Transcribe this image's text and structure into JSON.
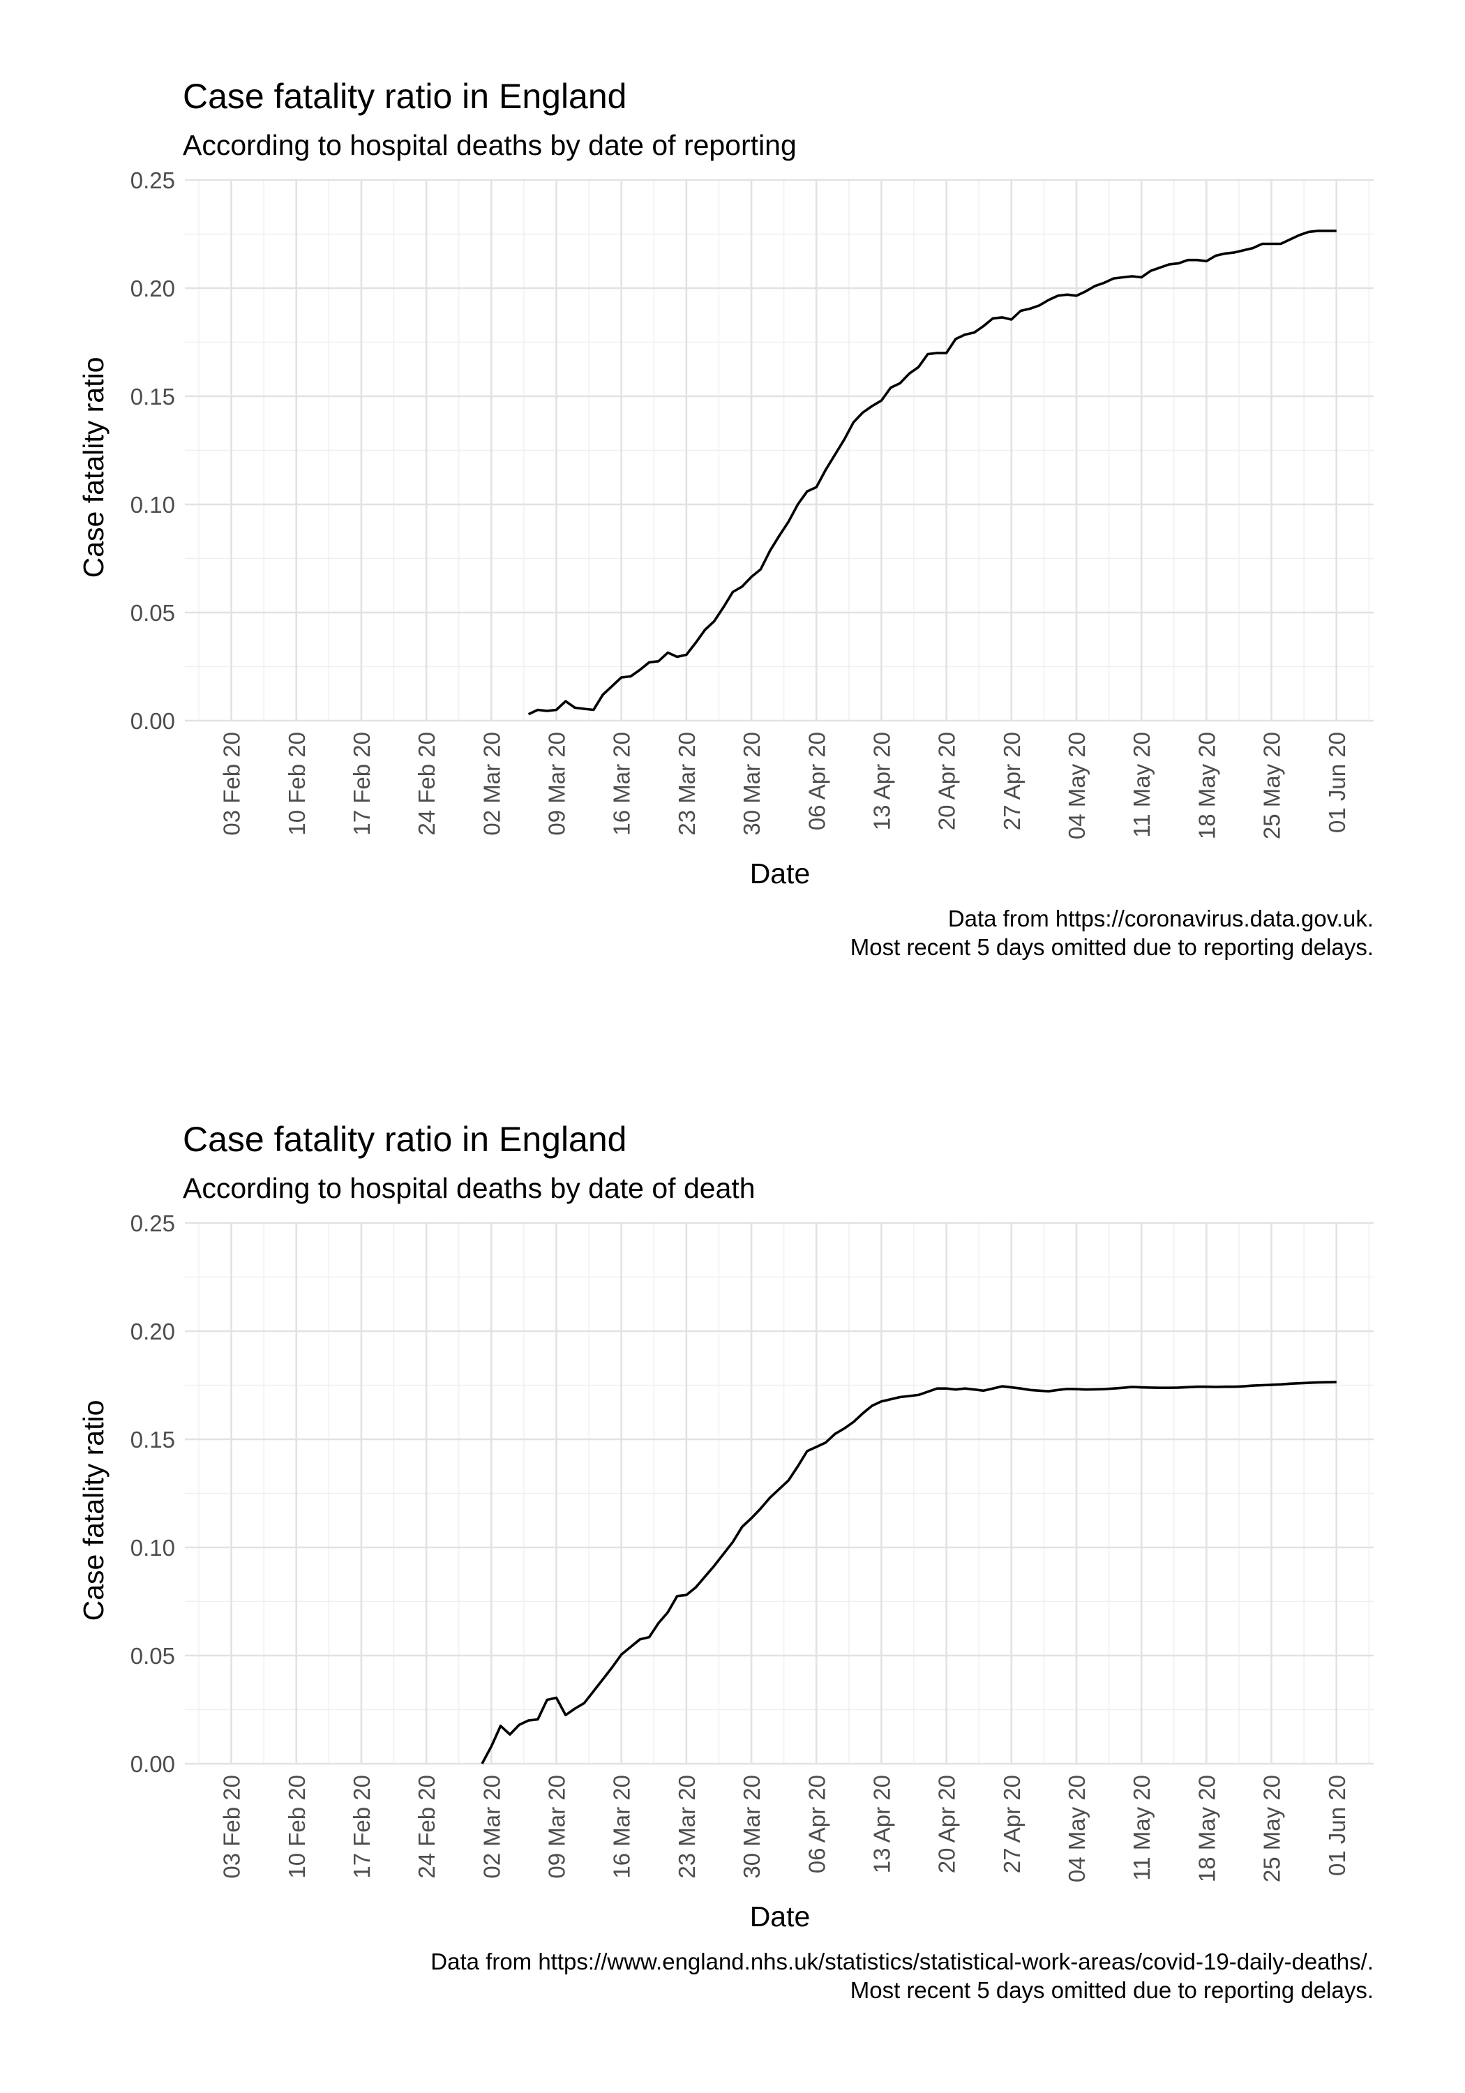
{
  "chart_data": [
    {
      "type": "line",
      "title": "Case fatality ratio in England",
      "subtitle": "According to hospital deaths by date of reporting",
      "xlabel": "Date",
      "ylabel": "Case fatality ratio",
      "caption_lines": [
        "Data from https://coronavirus.data.gov.uk.",
        "Most recent 5 days omitted due to reporting delays."
      ],
      "xlim": [
        "2020-01-29",
        "2020-06-05"
      ],
      "ylim": [
        0,
        0.25
      ],
      "x_ticks": [
        "2020-02-03",
        "2020-02-10",
        "2020-02-17",
        "2020-02-24",
        "2020-03-02",
        "2020-03-09",
        "2020-03-16",
        "2020-03-23",
        "2020-03-30",
        "2020-04-06",
        "2020-04-13",
        "2020-04-20",
        "2020-04-27",
        "2020-05-04",
        "2020-05-11",
        "2020-05-18",
        "2020-05-25",
        "2020-06-01"
      ],
      "x_tick_labels": [
        "03 Feb 20",
        "10 Feb 20",
        "17 Feb 20",
        "24 Feb 20",
        "02 Mar 20",
        "09 Mar 20",
        "16 Mar 20",
        "23 Mar 20",
        "30 Mar 20",
        "06 Apr 20",
        "13 Apr 20",
        "20 Apr 20",
        "27 Apr 20",
        "04 May 20",
        "11 May 20",
        "18 May 20",
        "25 May 20",
        "01 Jun 20"
      ],
      "y_ticks": [
        0,
        0.05,
        0.1,
        0.15,
        0.2,
        0.25
      ],
      "y_tick_labels": [
        "0.00",
        "0.05",
        "0.10",
        "0.15",
        "0.20",
        "0.25"
      ],
      "grid": true,
      "series": [
        {
          "points": [
            [
              "2020-03-06",
              0.003
            ],
            [
              "2020-03-07",
              0.005
            ],
            [
              "2020-03-08",
              0.0045
            ],
            [
              "2020-03-09",
              0.005
            ],
            [
              "2020-03-10",
              0.009
            ],
            [
              "2020-03-11",
              0.006
            ],
            [
              "2020-03-12",
              0.0055
            ],
            [
              "2020-03-13",
              0.005
            ],
            [
              "2020-03-14",
              0.012
            ],
            [
              "2020-03-15",
              0.016
            ],
            [
              "2020-03-16",
              0.02
            ],
            [
              "2020-03-17",
              0.0205
            ],
            [
              "2020-03-18",
              0.0235
            ],
            [
              "2020-03-19",
              0.027
            ],
            [
              "2020-03-20",
              0.0275
            ],
            [
              "2020-03-21",
              0.0315
            ],
            [
              "2020-03-22",
              0.0295
            ],
            [
              "2020-03-23",
              0.0305
            ],
            [
              "2020-03-24",
              0.036
            ],
            [
              "2020-03-25",
              0.042
            ],
            [
              "2020-03-26",
              0.046
            ],
            [
              "2020-03-27",
              0.0525
            ],
            [
              "2020-03-28",
              0.0595
            ],
            [
              "2020-03-29",
              0.062
            ],
            [
              "2020-03-30",
              0.0665
            ],
            [
              "2020-03-31",
              0.07
            ],
            [
              "2020-04-01",
              0.0785
            ],
            [
              "2020-04-02",
              0.0855
            ],
            [
              "2020-04-03",
              0.092
            ],
            [
              "2020-04-04",
              0.1
            ],
            [
              "2020-04-05",
              0.106
            ],
            [
              "2020-04-06",
              0.108
            ],
            [
              "2020-04-07",
              0.116
            ],
            [
              "2020-04-08",
              0.123
            ],
            [
              "2020-04-09",
              0.13
            ],
            [
              "2020-04-10",
              0.138
            ],
            [
              "2020-04-11",
              0.1425
            ],
            [
              "2020-04-12",
              0.1455
            ],
            [
              "2020-04-13",
              0.148
            ],
            [
              "2020-04-14",
              0.154
            ],
            [
              "2020-04-15",
              0.156
            ],
            [
              "2020-04-16",
              0.1605
            ],
            [
              "2020-04-17",
              0.1635
            ],
            [
              "2020-04-18",
              0.1695
            ],
            [
              "2020-04-19",
              0.17
            ],
            [
              "2020-04-20",
              0.17
            ],
            [
              "2020-04-21",
              0.1765
            ],
            [
              "2020-04-22",
              0.1785
            ],
            [
              "2020-04-23",
              0.1795
            ],
            [
              "2020-04-24",
              0.1825
            ],
            [
              "2020-04-25",
              0.186
            ],
            [
              "2020-04-26",
              0.1865
            ],
            [
              "2020-04-27",
              0.1855
            ],
            [
              "2020-04-28",
              0.1895
            ],
            [
              "2020-04-29",
              0.1905
            ],
            [
              "2020-04-30",
              0.192
            ],
            [
              "2020-05-01",
              0.1945
            ],
            [
              "2020-05-02",
              0.1965
            ],
            [
              "2020-05-03",
              0.197
            ],
            [
              "2020-05-04",
              0.1965
            ],
            [
              "2020-05-05",
              0.1985
            ],
            [
              "2020-05-06",
              0.201
            ],
            [
              "2020-05-07",
              0.2025
            ],
            [
              "2020-05-08",
              0.2045
            ],
            [
              "2020-05-09",
              0.205
            ],
            [
              "2020-05-10",
              0.2055
            ],
            [
              "2020-05-11",
              0.205
            ],
            [
              "2020-05-12",
              0.208
            ],
            [
              "2020-05-13",
              0.2095
            ],
            [
              "2020-05-14",
              0.211
            ],
            [
              "2020-05-15",
              0.2115
            ],
            [
              "2020-05-16",
              0.213
            ],
            [
              "2020-05-17",
              0.213
            ],
            [
              "2020-05-18",
              0.2125
            ],
            [
              "2020-05-19",
              0.215
            ],
            [
              "2020-05-20",
              0.216
            ],
            [
              "2020-05-21",
              0.2165
            ],
            [
              "2020-05-22",
              0.2175
            ],
            [
              "2020-05-23",
              0.2185
            ],
            [
              "2020-05-24",
              0.2205
            ],
            [
              "2020-05-25",
              0.2205
            ],
            [
              "2020-05-26",
              0.2205
            ],
            [
              "2020-05-27",
              0.2225
            ],
            [
              "2020-05-28",
              0.2245
            ],
            [
              "2020-05-29",
              0.226
            ],
            [
              "2020-05-30",
              0.2265
            ],
            [
              "2020-05-31",
              0.2265
            ],
            [
              "2020-06-01",
              0.2265
            ]
          ]
        }
      ]
    },
    {
      "type": "line",
      "title": "Case fatality ratio in England",
      "subtitle": "According to hospital deaths by date of death",
      "xlabel": "Date",
      "ylabel": "Case fatality ratio",
      "caption_lines": [
        "Data from https://www.england.nhs.uk/statistics/statistical-work-areas/covid-19-daily-deaths/.",
        "Most recent 5 days omitted due to reporting delays."
      ],
      "xlim": [
        "2020-01-29",
        "2020-06-05"
      ],
      "ylim": [
        0,
        0.25
      ],
      "x_ticks": [
        "2020-02-03",
        "2020-02-10",
        "2020-02-17",
        "2020-02-24",
        "2020-03-02",
        "2020-03-09",
        "2020-03-16",
        "2020-03-23",
        "2020-03-30",
        "2020-04-06",
        "2020-04-13",
        "2020-04-20",
        "2020-04-27",
        "2020-05-04",
        "2020-05-11",
        "2020-05-18",
        "2020-05-25",
        "2020-06-01"
      ],
      "x_tick_labels": [
        "03 Feb 20",
        "10 Feb 20",
        "17 Feb 20",
        "24 Feb 20",
        "02 Mar 20",
        "09 Mar 20",
        "16 Mar 20",
        "23 Mar 20",
        "30 Mar 20",
        "06 Apr 20",
        "13 Apr 20",
        "20 Apr 20",
        "27 Apr 20",
        "04 May 20",
        "11 May 20",
        "18 May 20",
        "25 May 20",
        "01 Jun 20"
      ],
      "y_ticks": [
        0,
        0.05,
        0.1,
        0.15,
        0.2,
        0.25
      ],
      "y_tick_labels": [
        "0.00",
        "0.05",
        "0.10",
        "0.15",
        "0.20",
        "0.25"
      ],
      "grid": true,
      "series": [
        {
          "points": [
            [
              "2020-03-01",
              0.0
            ],
            [
              "2020-03-02",
              0.008
            ],
            [
              "2020-03-03",
              0.0175
            ],
            [
              "2020-03-04",
              0.0135
            ],
            [
              "2020-03-05",
              0.018
            ],
            [
              "2020-03-06",
              0.02
            ],
            [
              "2020-03-07",
              0.0205
            ],
            [
              "2020-03-08",
              0.0295
            ],
            [
              "2020-03-09",
              0.0305
            ],
            [
              "2020-03-10",
              0.0225
            ],
            [
              "2020-03-11",
              0.0255
            ],
            [
              "2020-03-12",
              0.028
            ],
            [
              "2020-03-13",
              0.0335
            ],
            [
              "2020-03-14",
              0.039
            ],
            [
              "2020-03-15",
              0.0445
            ],
            [
              "2020-03-16",
              0.0505
            ],
            [
              "2020-03-17",
              0.054
            ],
            [
              "2020-03-18",
              0.0575
            ],
            [
              "2020-03-19",
              0.0585
            ],
            [
              "2020-03-20",
              0.065
            ],
            [
              "2020-03-21",
              0.07
            ],
            [
              "2020-03-22",
              0.0775
            ],
            [
              "2020-03-23",
              0.078
            ],
            [
              "2020-03-24",
              0.0815
            ],
            [
              "2020-03-25",
              0.0865
            ],
            [
              "2020-03-26",
              0.0915
            ],
            [
              "2020-03-27",
              0.097
            ],
            [
              "2020-03-28",
              0.1025
            ],
            [
              "2020-03-29",
              0.1095
            ],
            [
              "2020-03-30",
              0.1135
            ],
            [
              "2020-03-31",
              0.118
            ],
            [
              "2020-04-01",
              0.123
            ],
            [
              "2020-04-02",
              0.127
            ],
            [
              "2020-04-03",
              0.131
            ],
            [
              "2020-04-04",
              0.1375
            ],
            [
              "2020-04-05",
              0.1445
            ],
            [
              "2020-04-06",
              0.1465
            ],
            [
              "2020-04-07",
              0.1485
            ],
            [
              "2020-04-08",
              0.1525
            ],
            [
              "2020-04-09",
              0.155
            ],
            [
              "2020-04-10",
              0.158
            ],
            [
              "2020-04-11",
              0.162
            ],
            [
              "2020-04-12",
              0.1655
            ],
            [
              "2020-04-13",
              0.1675
            ],
            [
              "2020-04-14",
              0.1685
            ],
            [
              "2020-04-15",
              0.1695
            ],
            [
              "2020-04-16",
              0.17
            ],
            [
              "2020-04-17",
              0.1705
            ],
            [
              "2020-04-18",
              0.172
            ],
            [
              "2020-04-19",
              0.1735
            ],
            [
              "2020-04-20",
              0.1735
            ],
            [
              "2020-04-21",
              0.173
            ],
            [
              "2020-04-22",
              0.1735
            ],
            [
              "2020-04-23",
              0.173
            ],
            [
              "2020-04-24",
              0.1725
            ],
            [
              "2020-04-25",
              0.1735
            ],
            [
              "2020-04-26",
              0.1745
            ],
            [
              "2020-04-27",
              0.174
            ],
            [
              "2020-04-28",
              0.1735
            ],
            [
              "2020-04-29",
              0.1728
            ],
            [
              "2020-04-30",
              0.1725
            ],
            [
              "2020-05-01",
              0.1722
            ],
            [
              "2020-05-02",
              0.1728
            ],
            [
              "2020-05-03",
              0.1733
            ],
            [
              "2020-05-04",
              0.1732
            ],
            [
              "2020-05-05",
              0.173
            ],
            [
              "2020-05-06",
              0.1731
            ],
            [
              "2020-05-07",
              0.1732
            ],
            [
              "2020-05-08",
              0.1735
            ],
            [
              "2020-05-09",
              0.1738
            ],
            [
              "2020-05-10",
              0.1742
            ],
            [
              "2020-05-11",
              0.174
            ],
            [
              "2020-05-12",
              0.1739
            ],
            [
              "2020-05-13",
              0.1738
            ],
            [
              "2020-05-14",
              0.1738
            ],
            [
              "2020-05-15",
              0.1739
            ],
            [
              "2020-05-16",
              0.1741
            ],
            [
              "2020-05-17",
              0.1743
            ],
            [
              "2020-05-18",
              0.1743
            ],
            [
              "2020-05-19",
              0.1742
            ],
            [
              "2020-05-20",
              0.1743
            ],
            [
              "2020-05-21",
              0.1743
            ],
            [
              "2020-05-22",
              0.1745
            ],
            [
              "2020-05-23",
              0.1748
            ],
            [
              "2020-05-24",
              0.175
            ],
            [
              "2020-05-25",
              0.1752
            ],
            [
              "2020-05-26",
              0.1754
            ],
            [
              "2020-05-27",
              0.1757
            ],
            [
              "2020-05-28",
              0.1759
            ],
            [
              "2020-05-29",
              0.1761
            ],
            [
              "2020-05-30",
              0.1763
            ],
            [
              "2020-05-31",
              0.1764
            ],
            [
              "2020-06-01",
              0.1765
            ]
          ]
        }
      ]
    }
  ]
}
